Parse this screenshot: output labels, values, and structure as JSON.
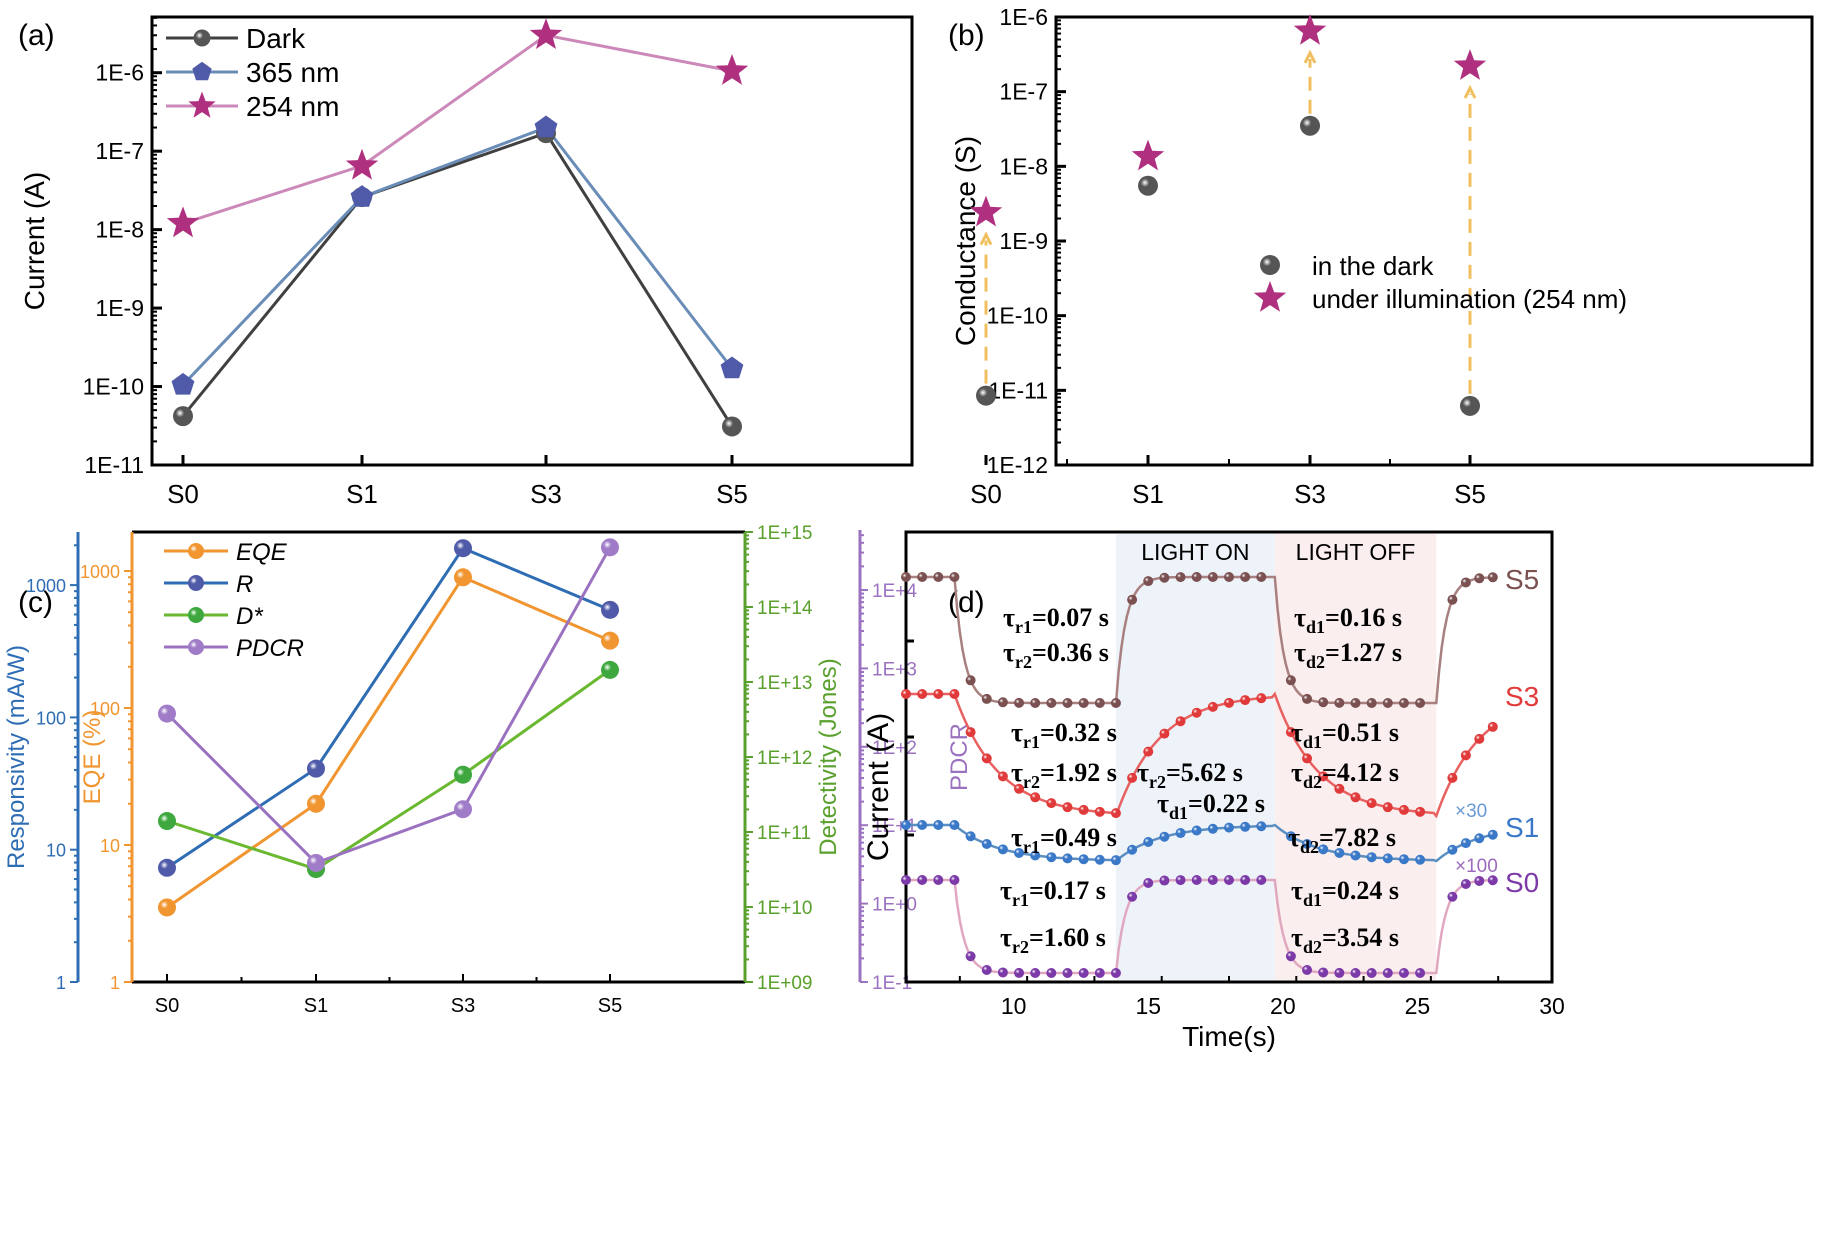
{
  "figure": {
    "panels": [
      "(a)",
      "(b)",
      "(c)",
      "(d)"
    ]
  },
  "chart_data": [
    {
      "panel": "(a)",
      "type": "line",
      "title": "",
      "xlabel": "",
      "ylabel": "Current (A)",
      "yscale": "log",
      "ylim": [
        1e-11,
        5e-06
      ],
      "categories": [
        "S0",
        "S1",
        "S3",
        "S5"
      ],
      "yticks": [
        "1E-11",
        "1E-10",
        "1E-9",
        "1E-8",
        "1E-7",
        "1E-6"
      ],
      "legend_position": "top-left",
      "series": [
        {
          "name": "Dark",
          "marker": "sphere",
          "color": "#555555",
          "line_color": "#404040",
          "values": [
            4.2e-11,
            2.6e-08,
            1.7e-07,
            3.1e-11
          ]
        },
        {
          "name": "365 nm",
          "marker": "pentagon",
          "color": "#4f5aa8",
          "line_color": "#6a8db8",
          "values": [
            1.05e-10,
            2.6e-08,
            2e-07,
            1.7e-10
          ]
        },
        {
          "name": "254 nm",
          "marker": "star",
          "color": "#b03080",
          "line_color": "#cc88b8",
          "values": [
            1.2e-08,
            6.5e-08,
            3e-06,
            1.05e-06
          ]
        }
      ]
    },
    {
      "panel": "(b)",
      "type": "scatter",
      "title": "",
      "xlabel": "",
      "ylabel": "Conductance (S)",
      "yscale": "log",
      "ylim": [
        1e-12,
        1e-06
      ],
      "categories": [
        "S0",
        "S1",
        "S3",
        "S5"
      ],
      "yticks": [
        "1E-12",
        "1E-11",
        "1E-10",
        "1E-9",
        "1E-8",
        "1E-7",
        "1E-6"
      ],
      "legend_position": "center-right",
      "arrow_color": "#f0c060",
      "series": [
        {
          "name": "in the dark",
          "marker": "sphere",
          "color": "#555555",
          "values": [
            8.5e-12,
            5.5e-09,
            3.5e-08,
            6.2e-12
          ]
        },
        {
          "name": "under illumination (254 nm)",
          "marker": "star",
          "color": "#b03080",
          "values": [
            2.4e-09,
            1.35e-08,
            6.5e-07,
            2.2e-07
          ]
        }
      ],
      "arrows": [
        "S0",
        "S3",
        "S5"
      ]
    },
    {
      "panel": "(c)",
      "type": "line",
      "title": "",
      "xlabel": "",
      "categories": [
        "S0",
        "S1",
        "S3",
        "S5"
      ],
      "legend_position": "top-left",
      "axes": [
        {
          "id": "R",
          "label": "Responsivity (mA/W)",
          "color": "#2e6db4",
          "scale": "log",
          "range": [
            1,
            3000
          ],
          "ticks": [
            "1",
            "10",
            "100",
            "1000"
          ]
        },
        {
          "id": "EQE",
          "label": "EQE (%)",
          "color": "#f0952f",
          "scale": "log",
          "range": [
            1,
            2000
          ],
          "ticks": [
            "1",
            "10",
            "100",
            "1000"
          ]
        },
        {
          "id": "D",
          "label": "Detectivity (Jones)",
          "color": "#5aa02c",
          "scale": "log",
          "range": [
            1000000000.0,
            1000000000000000.0
          ],
          "ticks": [
            "1E+09",
            "1E+10",
            "1E+11",
            "1E+12",
            "1E+13",
            "1E+14",
            "1E+15"
          ]
        },
        {
          "id": "PDCR",
          "label": "PDCR",
          "color": "#9b72c0",
          "scale": "log",
          "range": [
            0.1,
            50000
          ],
          "ticks": [
            "1E-1",
            "1E+0",
            "1E+1",
            "1E+2",
            "1E+3",
            "1E+4"
          ]
        }
      ],
      "series": [
        {
          "name": "EQE",
          "axis": "EQE",
          "color": "#f0952f",
          "line_color": "#f0952f",
          "values": [
            3.5,
            20,
            900,
            310
          ]
        },
        {
          "name": "R",
          "axis": "R",
          "color": "#4f5aa8",
          "line_color": "#2e6db4",
          "values": [
            7.3,
            41,
            1900,
            650
          ]
        },
        {
          "name": "D*",
          "axis": "D",
          "color": "#3ea83e",
          "line_color": "#6ab830",
          "values": [
            140000000000.0,
            32000000000.0,
            580000000000.0,
            14500000000000.0
          ]
        },
        {
          "name": "PDCR",
          "axis": "PDCR",
          "color": "#a07cc8",
          "line_color": "#9b72c0",
          "values": [
            265,
            3.3,
            16,
            35000
          ]
        }
      ]
    },
    {
      "panel": "(d)",
      "type": "line",
      "title": "",
      "xlabel": "Time(s)",
      "ylabel": "Current (A)",
      "xlim": [
        6,
        30
      ],
      "xticks": [
        "10",
        "15",
        "20",
        "25",
        "30"
      ],
      "regions": [
        {
          "label": "LIGHT ON",
          "x": [
            13.8,
            19.7
          ],
          "color": "#eef3fa"
        },
        {
          "label": "LIGHT OFF",
          "x": [
            19.7,
            25.7
          ],
          "color": "#fbeeee"
        }
      ],
      "series": [
        {
          "name": "S5",
          "color": "#7a5050",
          "line_color": "#a88080",
          "scale_label": "",
          "levels": {
            "high": 0.93,
            "low": 0.72
          },
          "annotations": [
            "τr1=0.07 s",
            "τr2=0.36 s",
            "τd1=0.16 s",
            "τd2=1.27 s"
          ]
        },
        {
          "name": "S3",
          "color": "#e03a3a",
          "line_color": "#e86060",
          "scale_label": "",
          "levels": {
            "high": 0.72,
            "low": 0.52
          },
          "annotations": [
            "τr1=0.32 s",
            "τr2=1.92 s",
            "τd1=0.51 s",
            "τd2=4.12 s"
          ]
        },
        {
          "name": "S1",
          "color": "#3a78c8",
          "line_color": "#5a8ec0",
          "scale_label": "×30",
          "levels": {
            "high": 0.45,
            "low": 0.41
          },
          "annotations": [
            "τr1=0.49 s",
            "τr2=5.62 s",
            "τd1=0.22 s",
            "τd2=7.82 s"
          ]
        },
        {
          "name": "S0",
          "color": "#7b3aa8",
          "line_color": "#e0a8c0",
          "scale_label": "×100",
          "levels": {
            "high": 0.36,
            "low": 0.18
          },
          "annotations": [
            "τr1=0.17 s",
            "τr2=1.60 s",
            "τd1=0.24 s",
            "τd2=3.54 s"
          ]
        }
      ]
    }
  ]
}
